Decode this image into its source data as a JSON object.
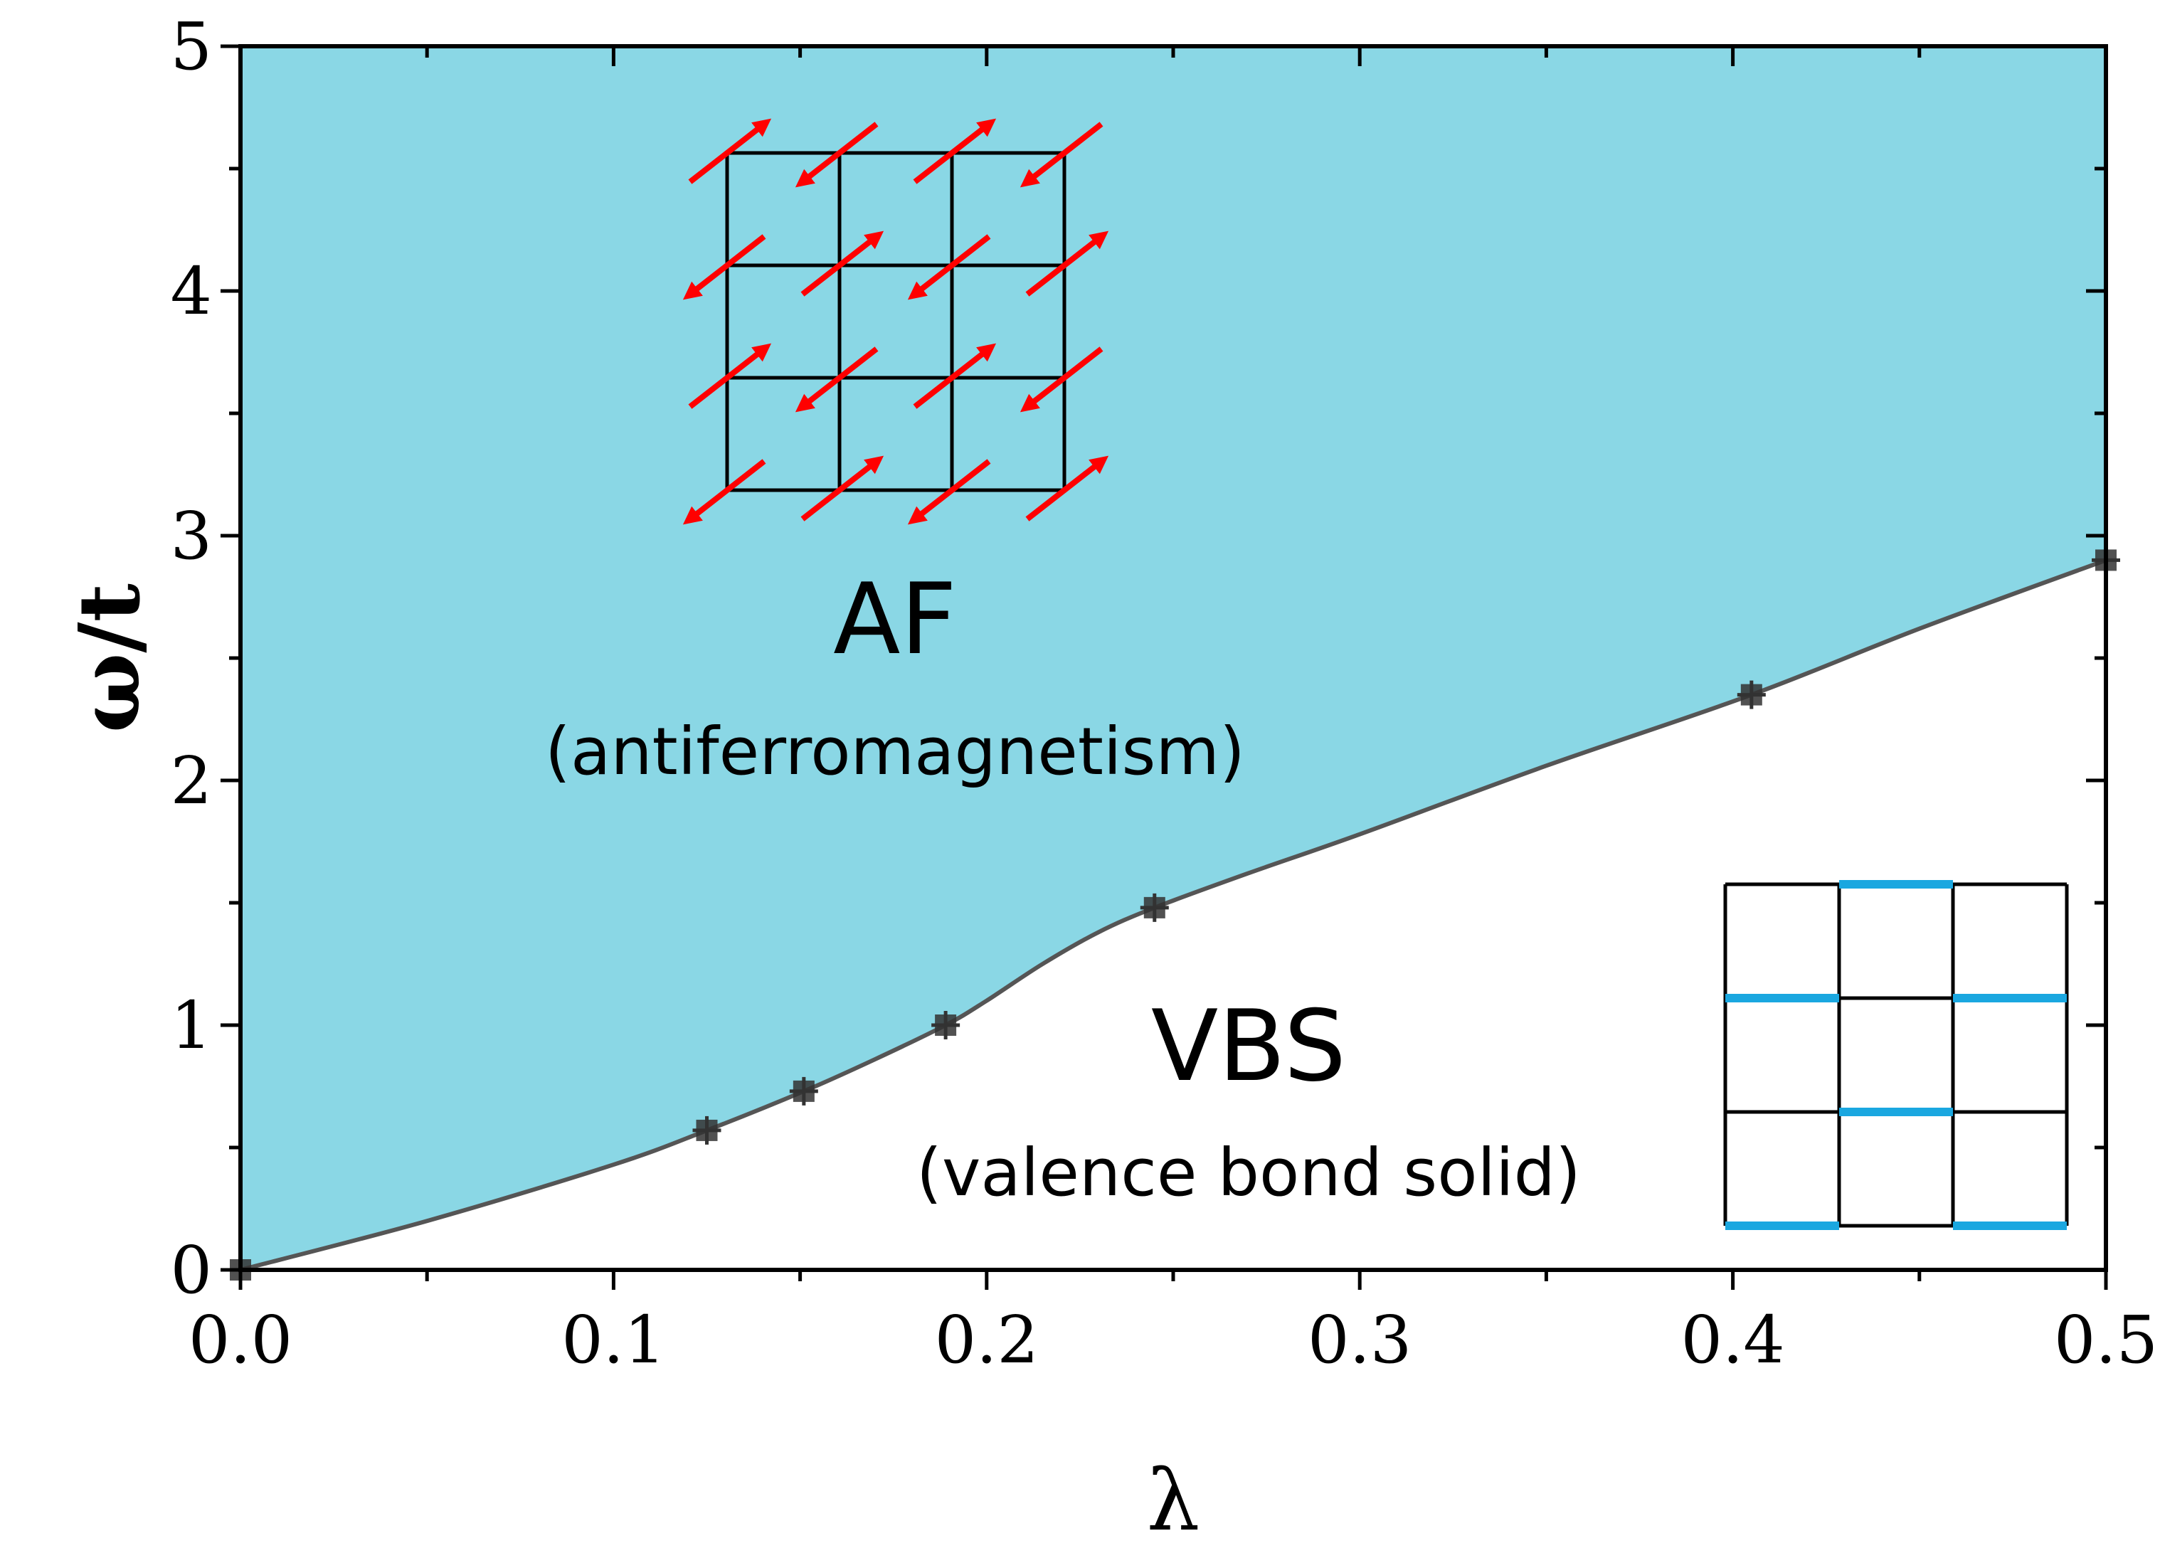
{
  "chart_data": {
    "type": "area",
    "title": "",
    "xlabel": "λ",
    "ylabel": "ω/t",
    "xlim": [
      0.0,
      0.5
    ],
    "ylim": [
      0,
      5
    ],
    "xticks": [
      "0.0",
      "0.1",
      "0.2",
      "0.3",
      "0.4",
      "0.5"
    ],
    "yticks": [
      "0",
      "1",
      "2",
      "3",
      "4",
      "5"
    ],
    "grid": false,
    "legend": "none",
    "series": [
      {
        "name": "",
        "type": "scatter-line",
        "x": [
          0.0,
          0.125,
          0.151,
          0.189,
          0.245,
          0.405,
          0.5
        ],
        "y": [
          0.0,
          0.57,
          0.73,
          1.0,
          1.48,
          2.35,
          2.9
        ]
      }
    ],
    "curve": {
      "x": [
        0.0,
        0.05,
        0.1,
        0.125,
        0.151,
        0.17,
        0.189,
        0.2,
        0.215,
        0.23,
        0.245,
        0.27,
        0.3,
        0.35,
        0.405,
        0.45,
        0.5
      ],
      "y": [
        0.0,
        0.2,
        0.43,
        0.57,
        0.73,
        0.86,
        1.0,
        1.1,
        1.25,
        1.38,
        1.48,
        1.62,
        1.78,
        2.06,
        2.35,
        2.62,
        2.9
      ]
    },
    "regions": [
      {
        "label": "AF",
        "sublabel": "(antiferromagnetism)",
        "position": "above-curve"
      },
      {
        "label": "VBS",
        "sublabel": "(valence bond solid)",
        "position": "below-curve"
      }
    ],
    "colors": {
      "af_fill": "#8ad7e5",
      "curve": "#555555",
      "points": "#333333",
      "spin_arrows": "#ff0000",
      "lattice": "#000000",
      "vbs_bonds": "#1aa7e0"
    }
  }
}
